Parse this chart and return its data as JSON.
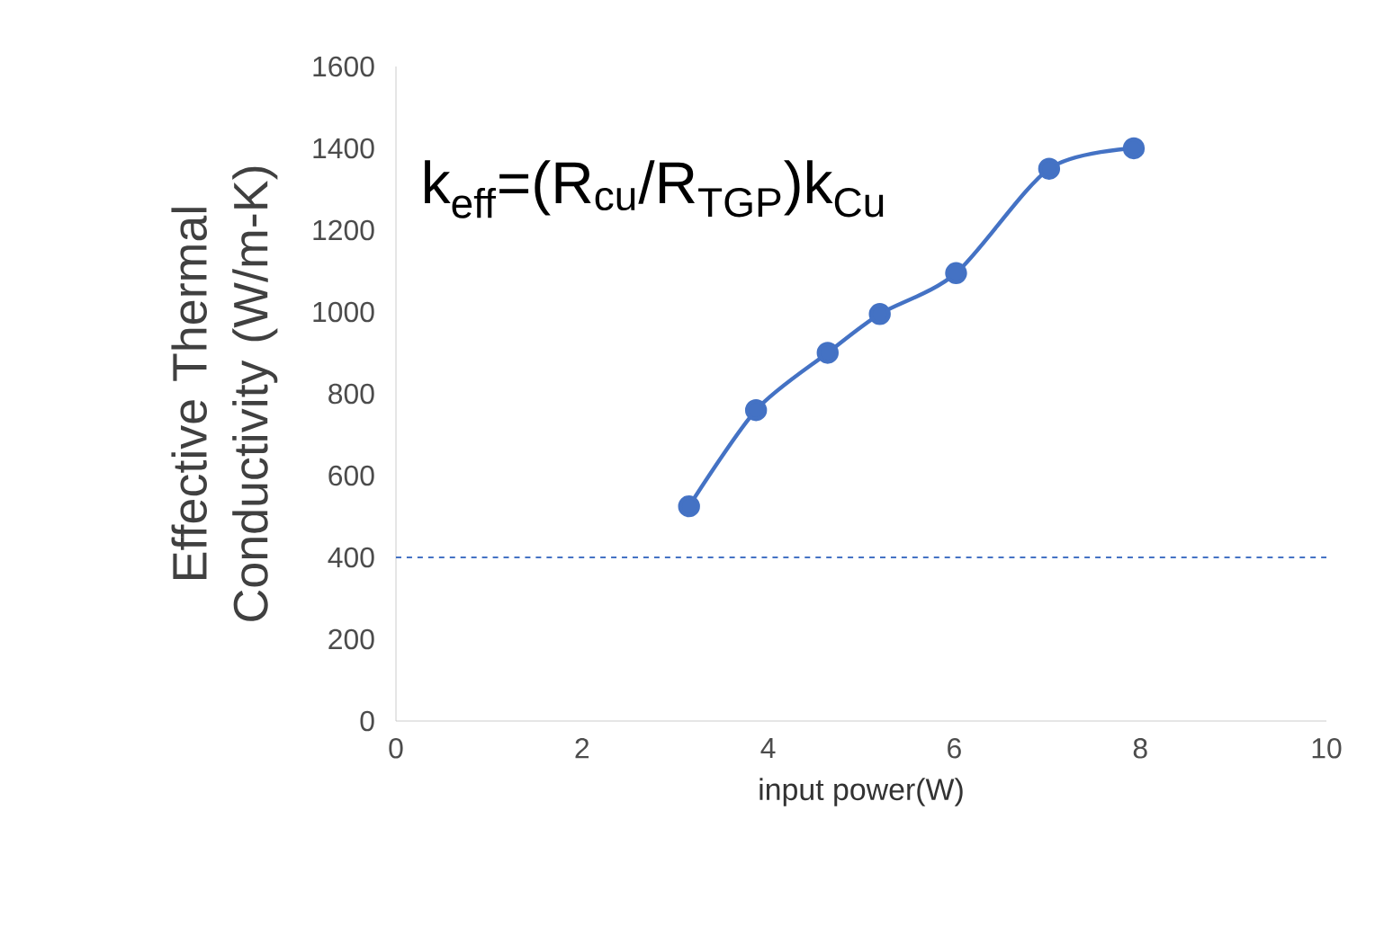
{
  "chart_data": {
    "type": "line",
    "xlabel": "input power(W)",
    "ylabel": "Effective Thermal Conductivity (W/m-K)",
    "annotations": [
      "k$_{eff}$=(R$_{cu}$/R$_{TGP}$)k$_{Cu}$"
    ],
    "x": [
      3.15,
      3.87,
      4.64,
      5.2,
      6.02,
      7.02,
      7.93
    ],
    "series": [
      {
        "color": "#4472c4",
        "values": [
          525,
          760,
          900,
          995,
          1095,
          1350,
          1400
        ]
      }
    ],
    "xlim": [
      0,
      10
    ],
    "xticks": [
      0,
      2,
      4,
      6,
      8,
      10
    ],
    "ylim": [
      0,
      1600
    ],
    "yticks": [
      0,
      200,
      400,
      600,
      800,
      1000,
      1200,
      1400,
      1600
    ],
    "ref_lines": [
      {
        "axis": "y",
        "value": 400,
        "color": "#4472c4",
        "line_style": "dashed"
      }
    ],
    "grid": false,
    "marker": "circle",
    "line_style": "solid"
  }
}
